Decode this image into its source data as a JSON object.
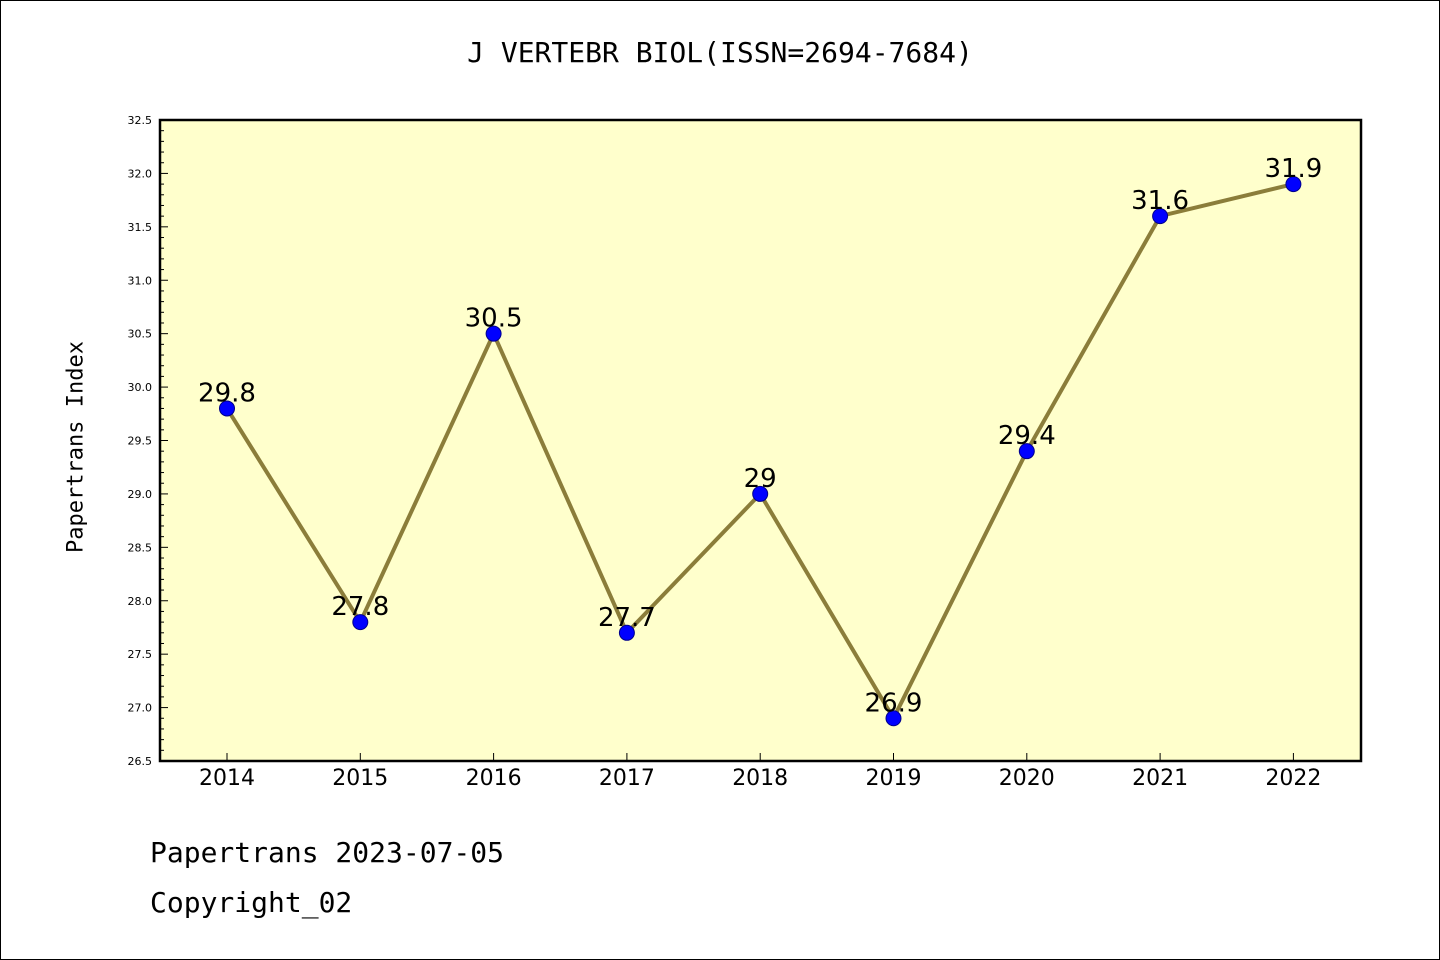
{
  "chart_data": {
    "type": "line",
    "title": "J VERTEBR BIOL(ISSN=2694-7684)",
    "ylabel": "Papertrans Index",
    "xlabel": "",
    "categories": [
      "2014",
      "2015",
      "2016",
      "2017",
      "2018",
      "2019",
      "2020",
      "2021",
      "2022"
    ],
    "series": [
      {
        "values": [
          29.8,
          27.8,
          30.5,
          27.7,
          29.0,
          26.9,
          29.4,
          31.6,
          31.9
        ]
      }
    ],
    "data_labels": [
      "29.8",
      "27.8",
      "30.5",
      "27.7",
      "29",
      "26.9",
      "29.4",
      "31.6",
      "31.9"
    ],
    "ylim": [
      26.5,
      32.5
    ],
    "yticks": [
      "26.5",
      "27.0",
      "27.5",
      "28.0",
      "28.5",
      "29.0",
      "29.5",
      "30.0",
      "30.5",
      "31.0",
      "31.5",
      "32.0",
      "32.5"
    ],
    "grid": false,
    "colors": {
      "plot_bg": "#ffffcc",
      "line": "#8b7d3a",
      "marker": "#0000ff"
    }
  },
  "footer": {
    "line1": "Papertrans 2023-07-05",
    "line2": "Copyright_02"
  }
}
